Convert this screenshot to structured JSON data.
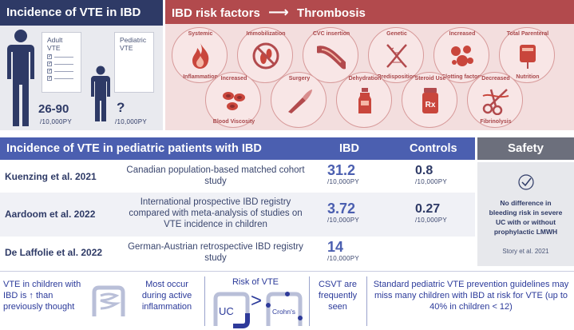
{
  "incidence": {
    "title": "Incidence of VTE in IBD",
    "adult_label_1": "Adult",
    "adult_label_2": "VTE",
    "pediatric_label_1": "Pediatric",
    "pediatric_label_2": "VTE",
    "adult_value": "26-90",
    "adult_unit": "/10,000PY",
    "pediatric_value": "?",
    "pediatric_unit": "/10,000PY"
  },
  "risk": {
    "title_left": "IBD risk factors",
    "arrow": "⟶",
    "title_right": "Thrombosis",
    "factors": [
      {
        "label1": "Systemic",
        "label2": "Inflammation",
        "icon": "flame-icon"
      },
      {
        "label1": "Immobilization",
        "label2": "",
        "icon": "no-footprint-icon"
      },
      {
        "label1": "CVC insertion",
        "label2": "",
        "icon": "catheter-icon"
      },
      {
        "label1": "Genetic",
        "label2": "Predisposition",
        "icon": "dna-icon"
      },
      {
        "label1": "Increased",
        "label2": "Clotting factors",
        "icon": "clotting-cells-icon"
      },
      {
        "label1": "Total Parenteral",
        "label2": "Nutrition",
        "icon": "iv-bag-icon"
      },
      {
        "label1": "Increased",
        "label2": "Blood Viscosity",
        "icon": "blood-cells-icon"
      },
      {
        "label1": "Surgery",
        "label2": "",
        "icon": "scalpel-icon"
      },
      {
        "label1": "Dehydration",
        "label2": "",
        "icon": "bottle-icon"
      },
      {
        "label1": "Steroid Use",
        "label2": "",
        "icon": "rx-bottle-icon"
      },
      {
        "label1": "Decreased",
        "label2": "Fibrinolysis",
        "icon": "scissors-icon"
      }
    ]
  },
  "table": {
    "title": "Incidence of VTE in pediatric patients with IBD",
    "col_ibd": "IBD",
    "col_controls": "Controls",
    "rows": [
      {
        "author": "Kuenzing et al. 2021",
        "desc": "Canadian population-based matched cohort study",
        "ibd": "31.2",
        "ibd_unit": "/10,000PY",
        "controls": "0.8",
        "controls_unit": "/10,000PY"
      },
      {
        "author": "Aardoom et al. 2022",
        "desc": "International prospective IBD registry compared with meta-analysis of studies on VTE incidence in children",
        "ibd": "3.72",
        "ibd_unit": "/10,000PY",
        "controls": "0.27",
        "controls_unit": "/10,000PY"
      },
      {
        "author": "De Laffolie et al. 2022",
        "desc": "German-Austrian retrospective IBD registry study",
        "ibd": "14",
        "ibd_unit": "/10,000PY",
        "controls": "",
        "controls_unit": ""
      }
    ]
  },
  "safety": {
    "title": "Safety",
    "text": "No difference in bleeding risk in severe UC with or without prophylactic LMWH",
    "ref": "Story et al. 2021"
  },
  "bottom": {
    "vte_children": "VTE in children with IBD is ↑ than previously thought",
    "active_inflammation": "Most occur during active inflammation",
    "risk_title": "Risk of VTE",
    "uc": "UC",
    "gt": ">",
    "crohns": "Crohn's",
    "csvt": "CSVT are frequently seen",
    "guidelines": "Standard pediatric VTE prevention guidelines may miss many children with IBD at risk for VTE (up to 40% in children < 12)"
  },
  "colors": {
    "navy": "#2e3a66",
    "red": "#b24a4d",
    "blue": "#4b5fb0",
    "grey": "#6c6f7c"
  }
}
